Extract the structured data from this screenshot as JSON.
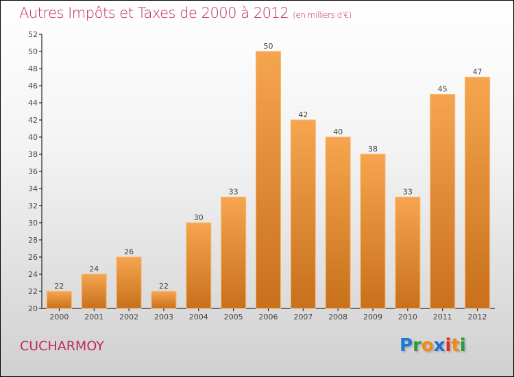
{
  "title": "Autres Impôts et Taxes de 2000 à 2012",
  "unit": "(en milliers d'€)",
  "commune": "CUCHARMOY",
  "logo": {
    "text": "Proxiti",
    "letters": [
      [
        "P",
        "#1a7ad4"
      ],
      [
        "r",
        "#2a9a3a"
      ],
      [
        "o",
        "#f08a10"
      ],
      [
        "x",
        "#1a6fd0"
      ],
      [
        "i",
        "#e02a20"
      ],
      [
        "t",
        "#f08a10"
      ],
      [
        "i",
        "#2a9a3a"
      ]
    ]
  },
  "colors": {
    "bar_top": "#f6a54e",
    "bar_bottom": "#c8701c",
    "title": "#c0285a"
  },
  "chart_data": {
    "type": "bar",
    "title": "Autres Impôts et Taxes de 2000 à 2012",
    "xlabel": "",
    "ylabel": "",
    "categories": [
      "2000",
      "2001",
      "2002",
      "2003",
      "2004",
      "2005",
      "2006",
      "2007",
      "2008",
      "2009",
      "2010",
      "2011",
      "2012"
    ],
    "values": [
      22,
      24,
      26,
      22,
      30,
      33,
      50,
      42,
      40,
      38,
      33,
      45,
      47
    ],
    "ylim": [
      20,
      52
    ],
    "yticks": [
      20,
      22,
      24,
      26,
      28,
      30,
      32,
      34,
      36,
      38,
      40,
      42,
      44,
      46,
      48,
      50,
      52
    ],
    "grid": false
  }
}
